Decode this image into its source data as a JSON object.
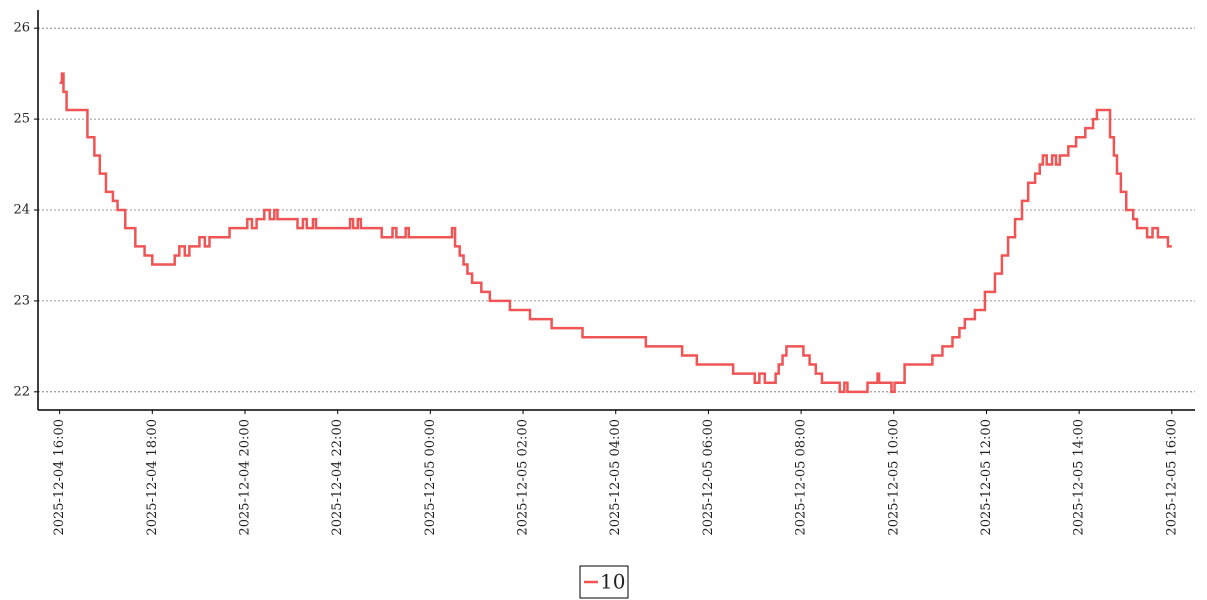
{
  "chart_data": {
    "type": "line",
    "step": true,
    "x": [
      "2025-12-04 16:00",
      "2025-12-04 16:03",
      "2025-12-04 16:05",
      "2025-12-04 16:09",
      "2025-12-04 16:36",
      "2025-12-04 16:45",
      "2025-12-04 16:52",
      "2025-12-04 17:00",
      "2025-12-04 17:09",
      "2025-12-04 17:15",
      "2025-12-04 17:25",
      "2025-12-04 17:38",
      "2025-12-04 17:50",
      "2025-12-04 18:00",
      "2025-12-04 18:29",
      "2025-12-04 18:35",
      "2025-12-04 18:42",
      "2025-12-04 18:48",
      "2025-12-04 19:01",
      "2025-12-04 19:08",
      "2025-12-04 19:14",
      "2025-12-04 19:40",
      "2025-12-04 20:03",
      "2025-12-04 20:09",
      "2025-12-04 20:15",
      "2025-12-04 20:25",
      "2025-12-04 20:32",
      "2025-12-04 20:38",
      "2025-12-04 20:42",
      "2025-12-04 21:08",
      "2025-12-04 21:15",
      "2025-12-04 21:20",
      "2025-12-04 21:28",
      "2025-12-04 21:32",
      "2025-12-04 22:16",
      "2025-12-04 22:20",
      "2025-12-04 22:26",
      "2025-12-04 22:30",
      "2025-12-04 22:57",
      "2025-12-04 23:11",
      "2025-12-04 23:16",
      "2025-12-04 23:28",
      "2025-12-04 23:32",
      "2025-12-05 00:28",
      "2025-12-05 00:32",
      "2025-12-05 00:38",
      "2025-12-05 00:43",
      "2025-12-05 00:48",
      "2025-12-05 00:54",
      "2025-12-05 01:06",
      "2025-12-05 01:17",
      "2025-12-05 01:43",
      "2025-12-05 02:09",
      "2025-12-05 02:37",
      "2025-12-05 03:17",
      "2025-12-05 04:39",
      "2025-12-05 05:26",
      "2025-12-05 05:45",
      "2025-12-05 06:32",
      "2025-12-05 07:00",
      "2025-12-05 07:06",
      "2025-12-05 07:13",
      "2025-12-05 07:27",
      "2025-12-05 07:31",
      "2025-12-05 07:36",
      "2025-12-05 07:41",
      "2025-12-05 08:03",
      "2025-12-05 08:11",
      "2025-12-05 08:19",
      "2025-12-05 08:27",
      "2025-12-05 08:50",
      "2025-12-05 08:56",
      "2025-12-05 09:00",
      "2025-12-05 09:26",
      "2025-12-05 09:39",
      "2025-12-05 09:41",
      "2025-12-05 09:57",
      "2025-12-05 10:01",
      "2025-12-05 10:14",
      "2025-12-05 10:50",
      "2025-12-05 11:03",
      "2025-12-05 11:16",
      "2025-12-05 11:25",
      "2025-12-05 11:32",
      "2025-12-05 11:45",
      "2025-12-05 11:58",
      "2025-12-05 12:11",
      "2025-12-05 12:20",
      "2025-12-05 12:28",
      "2025-12-05 12:37",
      "2025-12-05 12:46",
      "2025-12-05 12:54",
      "2025-12-05 13:03",
      "2025-12-05 13:09",
      "2025-12-05 13:13",
      "2025-12-05 13:18",
      "2025-12-05 13:25",
      "2025-12-05 13:30",
      "2025-12-05 13:35",
      "2025-12-05 13:46",
      "2025-12-05 13:56",
      "2025-12-05 14:08",
      "2025-12-05 14:18",
      "2025-12-05 14:23",
      "2025-12-05 14:40",
      "2025-12-05 14:45",
      "2025-12-05 14:49",
      "2025-12-05 14:54",
      "2025-12-05 15:01",
      "2025-12-05 15:10",
      "2025-12-05 15:15",
      "2025-12-05 15:28",
      "2025-12-05 15:35",
      "2025-12-05 15:42",
      "2025-12-05 15:55",
      "2025-12-05 16:00"
    ],
    "series": [
      {
        "name": "10",
        "color": "#f05454",
        "values": [
          25.4,
          25.5,
          25.3,
          25.1,
          24.8,
          24.6,
          24.4,
          24.2,
          24.1,
          24.0,
          23.8,
          23.6,
          23.5,
          23.4,
          23.5,
          23.6,
          23.5,
          23.6,
          23.7,
          23.6,
          23.7,
          23.8,
          23.9,
          23.8,
          23.9,
          24.0,
          23.9,
          24.0,
          23.9,
          23.8,
          23.9,
          23.8,
          23.9,
          23.8,
          23.9,
          23.8,
          23.9,
          23.8,
          23.7,
          23.8,
          23.7,
          23.8,
          23.7,
          23.8,
          23.6,
          23.5,
          23.4,
          23.3,
          23.2,
          23.1,
          23.0,
          22.9,
          22.8,
          22.7,
          22.6,
          22.5,
          22.4,
          22.3,
          22.2,
          22.1,
          22.2,
          22.1,
          22.2,
          22.3,
          22.4,
          22.5,
          22.4,
          22.3,
          22.2,
          22.1,
          22.0,
          22.1,
          22.0,
          22.1,
          22.2,
          22.1,
          22.0,
          22.1,
          22.3,
          22.4,
          22.5,
          22.6,
          22.7,
          22.8,
          22.9,
          23.1,
          23.3,
          23.5,
          23.7,
          23.9,
          24.1,
          24.3,
          24.4,
          24.5,
          24.6,
          24.5,
          24.6,
          24.5,
          24.6,
          24.7,
          24.8,
          24.9,
          25.0,
          25.1,
          24.8,
          24.6,
          24.4,
          24.2,
          24.0,
          23.9,
          23.8,
          23.7,
          23.8,
          23.7,
          23.6,
          23.6
        ]
      }
    ],
    "xlim": [
      "2025-12-04 15:32",
      "2025-12-05 16:30"
    ],
    "xticks": [
      "2025-12-04 16:00",
      "2025-12-04 18:00",
      "2025-12-04 20:00",
      "2025-12-04 22:00",
      "2025-12-05 00:00",
      "2025-12-05 02:00",
      "2025-12-05 04:00",
      "2025-12-05 06:00",
      "2025-12-05 08:00",
      "2025-12-05 10:00",
      "2025-12-05 12:00",
      "2025-12-05 14:00",
      "2025-12-05 16:00"
    ],
    "ylim": [
      21.8,
      26.2
    ],
    "yticks": [
      22,
      23,
      24,
      25,
      26
    ],
    "grid": true,
    "legend": "bottom"
  }
}
